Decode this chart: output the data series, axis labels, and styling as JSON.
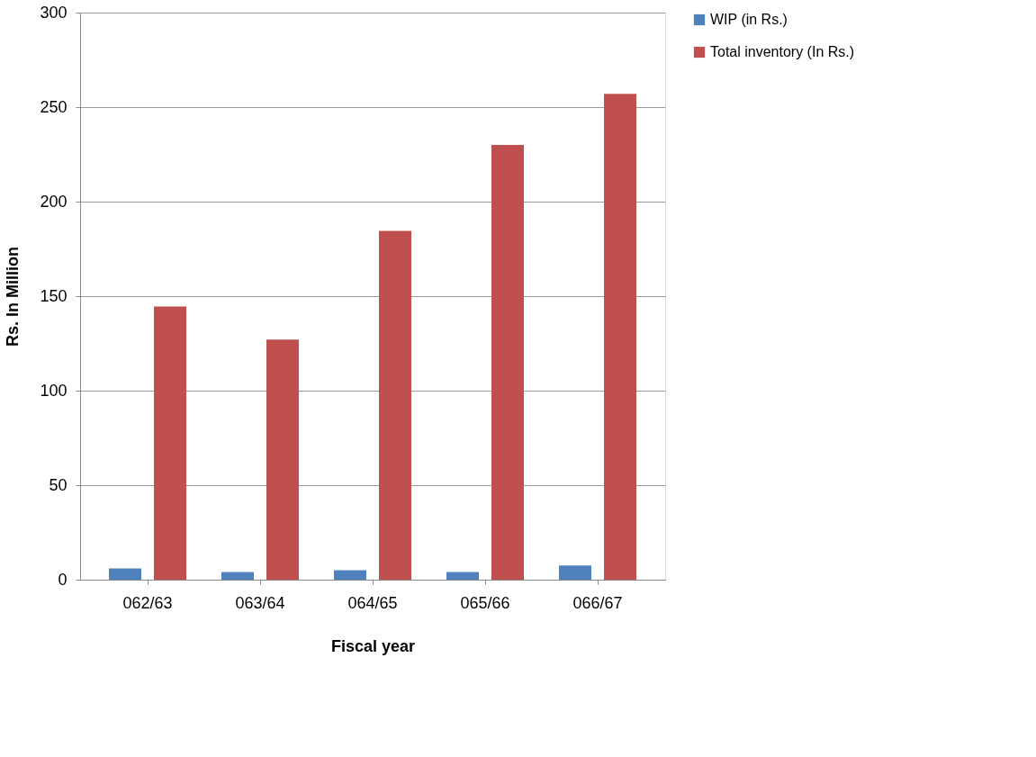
{
  "chart_data": {
    "type": "bar",
    "xlabel": "Fiscal year",
    "ylabel": "Rs. In  Million",
    "categories": [
      "062/63",
      "063/64",
      "064/65",
      "065/66",
      "066/67"
    ],
    "series": [
      {
        "name": "WIP  (in Rs.)",
        "color": "#4f81bd",
        "values": [
          6,
          4,
          5,
          4,
          7.5
        ]
      },
      {
        "name": "Total inventory      (In Rs.)",
        "color": "#c0504d",
        "values": [
          144.5,
          127,
          184.5,
          230,
          257
        ]
      }
    ],
    "ylim": [
      0,
      300
    ],
    "yticks": [
      0,
      50,
      100,
      150,
      200,
      250,
      300
    ],
    "grid": "y",
    "legend": "right"
  }
}
